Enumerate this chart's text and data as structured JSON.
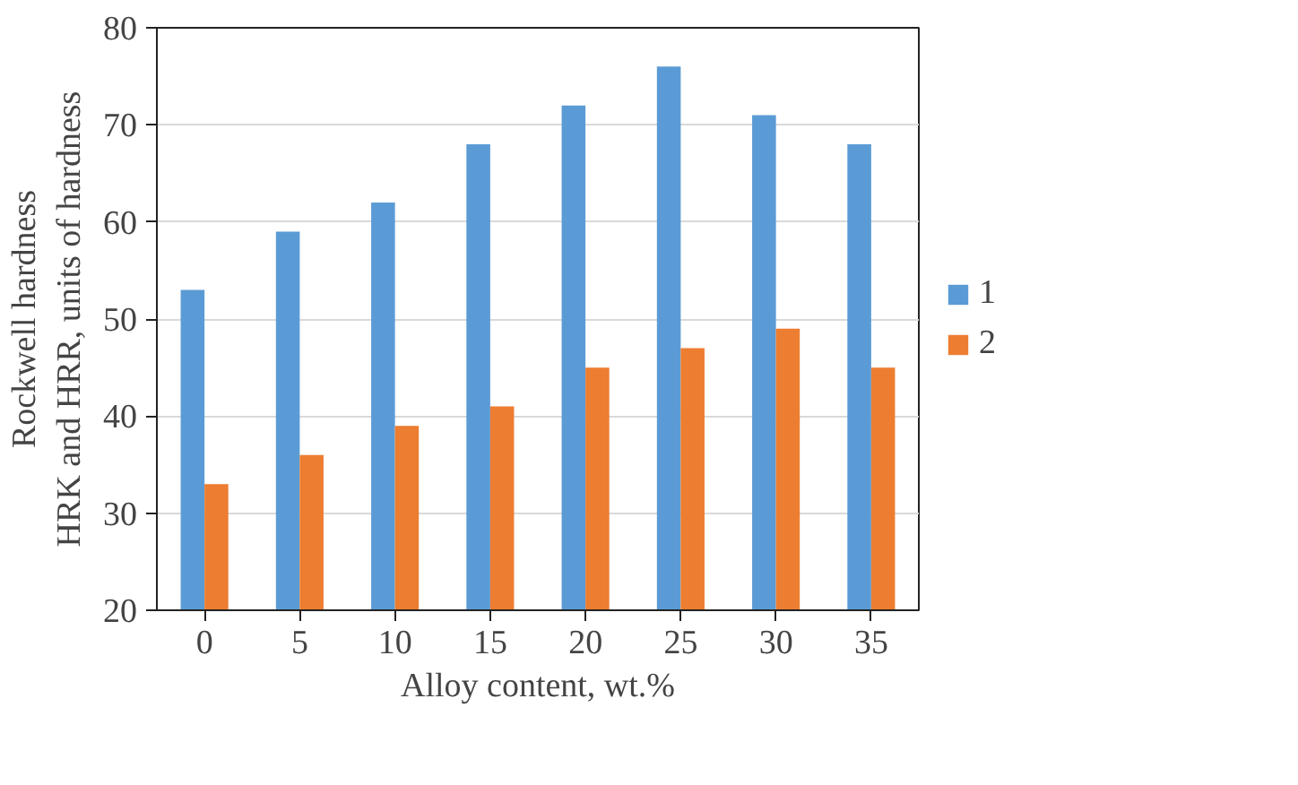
{
  "chart_data": {
    "type": "bar",
    "xlabel": "Alloy content, wt.%",
    "ylabel": "Rockwell hardness\nHRK and HRR, units of hardness",
    "categories": [
      "0",
      "5",
      "10",
      "15",
      "20",
      "25",
      "30",
      "35"
    ],
    "series": [
      {
        "name": "1",
        "color": "#5b9bd5",
        "values": [
          53,
          59,
          62,
          68,
          72,
          76,
          71,
          68
        ]
      },
      {
        "name": "2",
        "color": "#ed7d31",
        "values": [
          33,
          36,
          39,
          41,
          45,
          47,
          49,
          45
        ]
      }
    ],
    "ylim": [
      20,
      80
    ],
    "yticks": [
      20,
      30,
      40,
      50,
      60,
      70,
      80
    ],
    "grid": "y",
    "legend": "right"
  }
}
